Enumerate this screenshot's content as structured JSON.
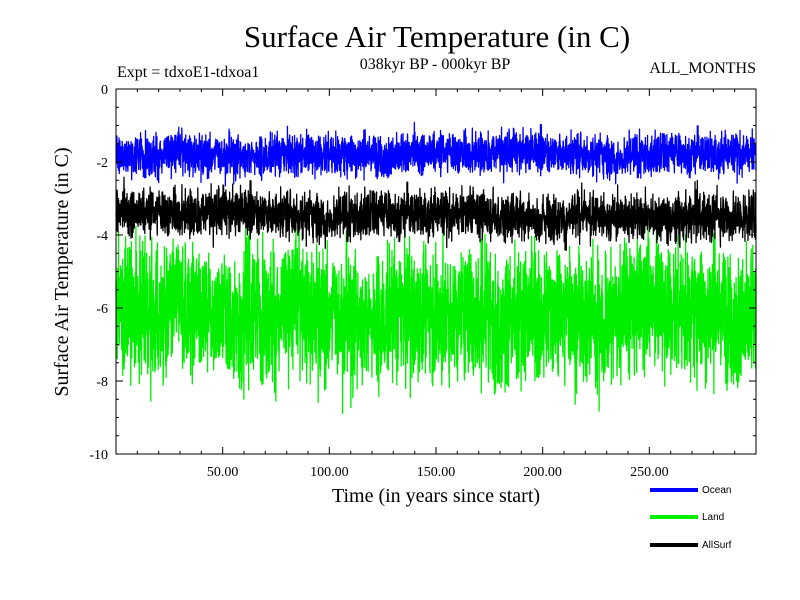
{
  "chart_data": {
    "type": "line",
    "title": "Surface Air Temperature (in C)",
    "subtitle": "038kyr BP - 000kyr BP",
    "experiment_label": "Expt = tdxoE1-tdxoa1",
    "months_label": "ALL_MONTHS",
    "xlabel": "Time (in years since start)",
    "ylabel": "Surface Air Temperature (in C)",
    "xlim": [
      0,
      300
    ],
    "ylim": [
      -10,
      0
    ],
    "x_ticks": [
      50,
      100,
      150,
      200,
      250
    ],
    "x_tick_labels": [
      "50.00",
      "100.00",
      "150.00",
      "200.00",
      "250.00"
    ],
    "y_ticks": [
      0,
      -2,
      -4,
      -6,
      -8,
      -10
    ],
    "y_tick_labels": [
      "0",
      "-2",
      "-4",
      "-6",
      "-8",
      "-10"
    ],
    "n_points": 3600,
    "series": [
      {
        "name": "Ocean",
        "color": "#0000ff",
        "mean": -1.75,
        "range": [
          -2.9,
          -0.9
        ]
      },
      {
        "name": "Land",
        "color": "#00ee00",
        "mean": -6.0,
        "range": [
          -8.9,
          -3.7
        ]
      },
      {
        "name": "AllSurf",
        "color": "#000000",
        "mean": -3.4,
        "range": [
          -4.9,
          -2.4
        ]
      }
    ]
  }
}
